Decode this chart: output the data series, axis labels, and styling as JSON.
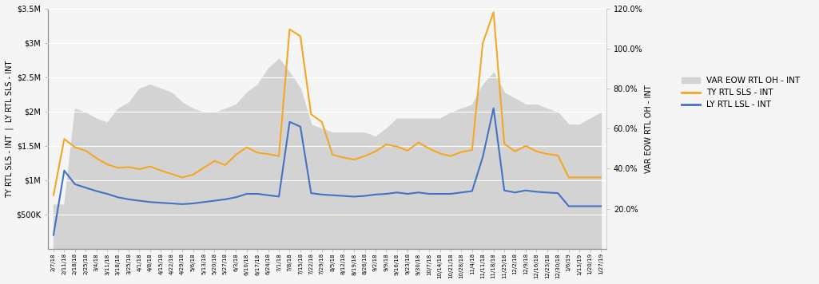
{
  "x_labels": [
    "2/7/18",
    "2/11/18",
    "2/18/18",
    "2/25/18",
    "3/4/18",
    "3/11/18",
    "3/18/18",
    "3/25/18",
    "4/1/18",
    "4/8/18",
    "4/15/18",
    "4/22/18",
    "4/29/18",
    "5/6/18",
    "5/13/18",
    "5/20/18",
    "5/27/18",
    "6/3/18",
    "6/10/18",
    "6/17/18",
    "6/24/18",
    "7/1/18",
    "7/8/18",
    "7/15/18",
    "7/22/18",
    "7/29/18",
    "8/5/18",
    "8/12/18",
    "8/19/18",
    "8/26/18",
    "9/2/18",
    "9/9/18",
    "9/16/18",
    "9/23/18",
    "9/30/18",
    "10/7/18",
    "10/14/18",
    "10/21/18",
    "10/28/18",
    "11/4/18",
    "11/11/18",
    "11/18/18",
    "11/25/18",
    "12/2/18",
    "12/9/18",
    "12/16/18",
    "12/23/18",
    "12/30/18",
    "1/6/19",
    "1/13/19",
    "1/20/19",
    "1/27/19"
  ],
  "ty_rtl_sls": [
    780000,
    1600000,
    1480000,
    1430000,
    1320000,
    1230000,
    1180000,
    1190000,
    1160000,
    1200000,
    1140000,
    1090000,
    1040000,
    1080000,
    1180000,
    1280000,
    1220000,
    1370000,
    1480000,
    1400000,
    1380000,
    1350000,
    3200000,
    3100000,
    1960000,
    1850000,
    1370000,
    1330000,
    1300000,
    1350000,
    1420000,
    1520000,
    1490000,
    1430000,
    1550000,
    1460000,
    1390000,
    1350000,
    1410000,
    1440000,
    3000000,
    3450000,
    1530000,
    1420000,
    1500000,
    1420000,
    1380000,
    1360000,
    1040000,
    1040000,
    1040000,
    1040000
  ],
  "ly_rtl_lsl": [
    200000,
    1140000,
    940000,
    890000,
    840000,
    800000,
    750000,
    720000,
    700000,
    680000,
    670000,
    660000,
    650000,
    660000,
    680000,
    700000,
    720000,
    750000,
    800000,
    800000,
    780000,
    760000,
    1850000,
    1780000,
    810000,
    790000,
    780000,
    770000,
    760000,
    770000,
    790000,
    800000,
    820000,
    800000,
    820000,
    800000,
    800000,
    800000,
    820000,
    840000,
    1340000,
    2050000,
    850000,
    820000,
    850000,
    830000,
    820000,
    810000,
    620000,
    620000,
    620000,
    620000
  ],
  "var_eow_rtl_oh": [
    0.22,
    0.22,
    0.7,
    0.68,
    0.65,
    0.63,
    0.7,
    0.73,
    0.8,
    0.82,
    0.8,
    0.78,
    0.73,
    0.7,
    0.68,
    0.68,
    0.7,
    0.72,
    0.78,
    0.82,
    0.9,
    0.95,
    0.88,
    0.8,
    0.62,
    0.6,
    0.58,
    0.58,
    0.58,
    0.58,
    0.56,
    0.6,
    0.65,
    0.65,
    0.65,
    0.65,
    0.65,
    0.68,
    0.7,
    0.72,
    0.82,
    0.88,
    0.78,
    0.75,
    0.72,
    0.72,
    0.7,
    0.68,
    0.62,
    0.62,
    0.65,
    0.68
  ],
  "colors": {
    "ty_rtl_sls": "#f5a623",
    "ly_rtl_lsl": "#4472c4",
    "var_eow_fill": "#d3d3d3",
    "background": "#f5f5f5",
    "plot_bg": "#f5f5f5",
    "grid": "#ffffff"
  },
  "left_ylabel": "TY RTL SLS - INT  |  LY RTL SLS - INT",
  "right_ylabel": "VAR EOW RTL OH - INT",
  "left_yticks": [
    "$500K",
    "$1M",
    "$1.5M",
    "$2M",
    "$2.5M",
    "$3M",
    "$3.5M"
  ],
  "left_yvals": [
    500000,
    1000000,
    1500000,
    2000000,
    2500000,
    3000000,
    3500000
  ],
  "right_yticks": [
    "20.0%",
    "40.0%",
    "60.0%",
    "80.0%",
    "100.0%",
    "120.0%"
  ],
  "right_yvals": [
    0.2,
    0.4,
    0.6,
    0.8,
    1.0,
    1.2
  ],
  "ylim_left": [
    0,
    3500000
  ],
  "ylim_right": [
    0,
    1.2
  ],
  "legend_labels": [
    "VAR EOW RTL OH - INT",
    "TY RTL SLS - INT",
    "LY RTL LSL - INT"
  ]
}
